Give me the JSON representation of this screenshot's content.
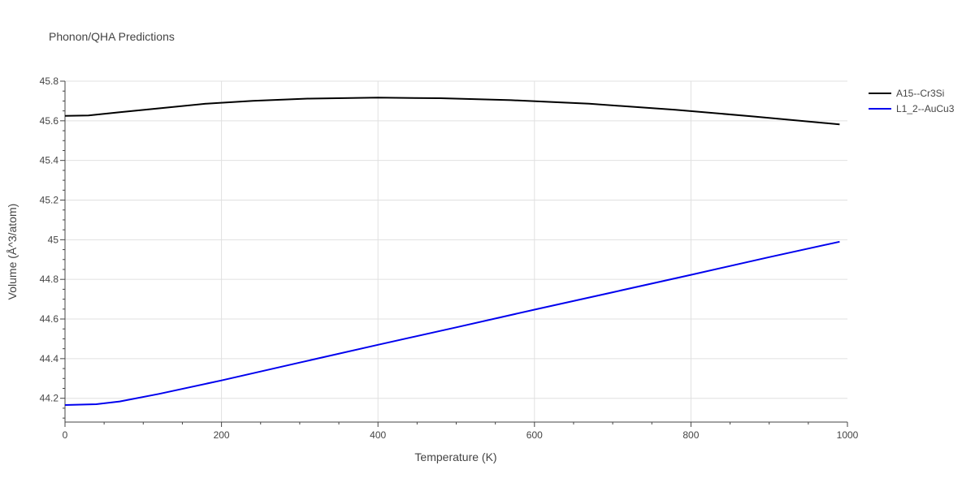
{
  "chart_data": {
    "type": "line",
    "title": "Phonon/QHA Predictions",
    "xlabel": "Temperature (K)",
    "ylabel": "Volume (Å^3/atom)",
    "xlim": [
      0,
      1000
    ],
    "ylim": [
      44.08,
      45.8
    ],
    "xticks": [
      0,
      200,
      400,
      600,
      800,
      1000
    ],
    "xtick_labels": [
      "0",
      "200",
      "400",
      "600",
      "800",
      "1000"
    ],
    "yticks": [
      44.2,
      44.4,
      44.6,
      44.8,
      45.0,
      45.2,
      45.4,
      45.6,
      45.8
    ],
    "ytick_labels": [
      "44.2",
      "44.4",
      "44.6",
      "44.8",
      "45",
      "45.2",
      "45.4",
      "45.6",
      "45.8"
    ],
    "grid": true,
    "legend": "top-right",
    "series": [
      {
        "name": "A15--Cr3Si",
        "color": "#000000",
        "x": [
          0,
          30,
          70,
          120,
          180,
          240,
          310,
          400,
          480,
          570,
          670,
          780,
          880,
          990
        ],
        "y": [
          45.625,
          45.627,
          45.643,
          45.663,
          45.686,
          45.701,
          45.712,
          45.717,
          45.714,
          45.704,
          45.686,
          45.656,
          45.622,
          45.582
        ]
      },
      {
        "name": "L1_2--AuCu3",
        "color": "#0000ee",
        "x": [
          0,
          20,
          40,
          70,
          120,
          200,
          300,
          400,
          500,
          600,
          700,
          800,
          900,
          990
        ],
        "y": [
          44.166,
          44.168,
          44.17,
          44.184,
          44.222,
          44.29,
          44.38,
          44.47,
          44.558,
          44.647,
          44.735,
          44.823,
          44.912,
          44.99
        ]
      }
    ]
  }
}
